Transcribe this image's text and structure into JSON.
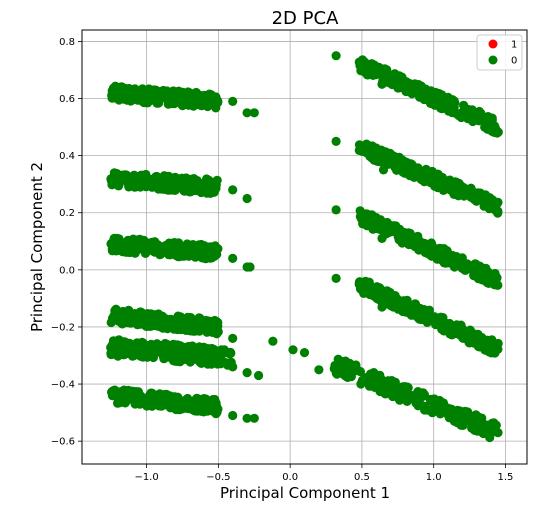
{
  "chart_data": {
    "type": "scatter",
    "title": "2D PCA",
    "xlabel": "Principal Component 1",
    "ylabel": "Principal Component 2",
    "xlim": [
      -1.45,
      1.65
    ],
    "ylim": [
      -0.68,
      0.84
    ],
    "xticks": [
      -1.0,
      -0.5,
      0.0,
      0.5,
      1.0,
      1.5
    ],
    "xtick_labels": [
      "−1.0",
      "−0.5",
      "0.0",
      "0.5",
      "1.0",
      "1.5"
    ],
    "yticks": [
      -0.6,
      -0.4,
      -0.2,
      0.0,
      0.2,
      0.4,
      0.6,
      0.8
    ],
    "ytick_labels": [
      "−0.6",
      "−0.4",
      "−0.2",
      "0.0",
      "0.2",
      "0.4",
      "0.6",
      "0.8"
    ],
    "grid": true,
    "legend_position": "top-right",
    "series": [
      {
        "name": "1",
        "color": "#ff0000",
        "clusters": [],
        "points": []
      },
      {
        "name": "0",
        "color": "#008000",
        "clusters": [
          {
            "x": [
              -1.25,
              -0.5
            ],
            "y_start": 0.62,
            "y_end": 0.59,
            "spread": 0.025
          },
          {
            "x": [
              -1.25,
              -0.5
            ],
            "y_start": 0.32,
            "y_end": 0.29,
            "spread": 0.025
          },
          {
            "x": [
              -1.25,
              -0.5
            ],
            "y_start": 0.09,
            "y_end": 0.06,
            "spread": 0.025
          },
          {
            "x": [
              -1.25,
              -0.5
            ],
            "y_start": -0.16,
            "y_end": -0.2,
            "spread": 0.025
          },
          {
            "x": [
              -1.25,
              -0.4
            ],
            "y_start": -0.27,
            "y_end": -0.31,
            "spread": 0.03
          },
          {
            "x": [
              -1.25,
              -0.5
            ],
            "y_start": -0.44,
            "y_end": -0.48,
            "spread": 0.025
          },
          {
            "x": [
              0.48,
              1.45
            ],
            "y_start": 0.72,
            "y_end": 0.5,
            "spread": 0.025
          },
          {
            "x": [
              0.48,
              1.45
            ],
            "y_start": 0.43,
            "y_end": 0.22,
            "spread": 0.025
          },
          {
            "x": [
              0.48,
              1.45
            ],
            "y_start": 0.19,
            "y_end": -0.04,
            "spread": 0.025
          },
          {
            "x": [
              0.48,
              1.45
            ],
            "y_start": -0.05,
            "y_end": -0.28,
            "spread": 0.025
          },
          {
            "x": [
              0.3,
              1.45
            ],
            "y_start": -0.33,
            "y_end": -0.57,
            "spread": 0.03
          }
        ],
        "points": [
          [
            0.32,
            0.75
          ],
          [
            0.32,
            0.45
          ],
          [
            0.32,
            0.21
          ],
          [
            0.32,
            -0.03
          ],
          [
            0.64,
            0.65
          ],
          [
            0.65,
            0.35
          ],
          [
            0.64,
            0.11
          ],
          [
            0.64,
            -0.13
          ],
          [
            -0.12,
            -0.25
          ],
          [
            0.2,
            -0.35
          ],
          [
            0.02,
            -0.28
          ],
          [
            0.1,
            -0.29
          ],
          [
            -0.4,
            0.59
          ],
          [
            -0.3,
            0.55
          ],
          [
            -0.25,
            0.55
          ],
          [
            -0.4,
            0.28
          ],
          [
            -0.3,
            0.25
          ],
          [
            -0.4,
            0.04
          ],
          [
            -0.3,
            0.01
          ],
          [
            -0.28,
            0.01
          ],
          [
            -0.4,
            -0.24
          ],
          [
            -0.4,
            -0.34
          ],
          [
            -0.3,
            -0.36
          ],
          [
            -0.22,
            -0.37
          ],
          [
            -0.4,
            -0.51
          ],
          [
            -0.3,
            -0.52
          ],
          [
            -0.25,
            -0.52
          ]
        ]
      }
    ]
  }
}
